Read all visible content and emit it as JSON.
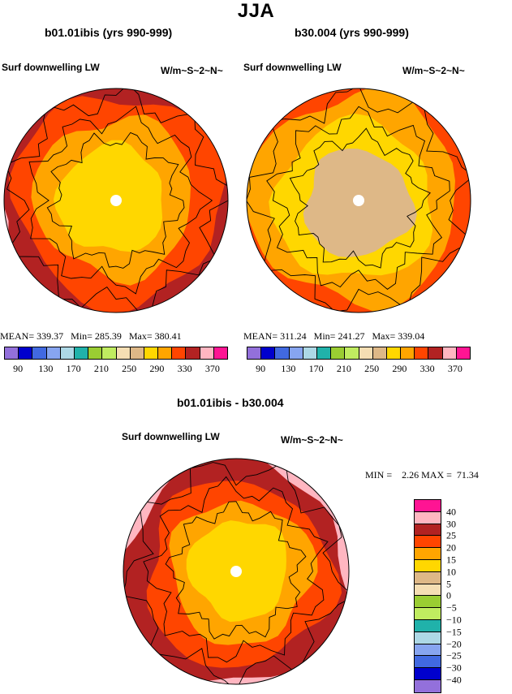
{
  "page": {
    "title": "JJA"
  },
  "panels": [
    {
      "id": "left",
      "subtitle": "b01.01ibis (yrs 990-999)",
      "variable": "Surf downwelling LW",
      "units": "W/m~S~2~N~",
      "stats": {
        "mean_label": "MEAN=",
        "mean": "339.37",
        "min_label": "Min=",
        "min": "285.39",
        "max_label": "Max=",
        "max": "380.41"
      }
    },
    {
      "id": "right",
      "subtitle": "b30.004 (yrs 990-999)",
      "variable": "Surf downwelling LW",
      "units": "W/m~S~2~N~",
      "stats": {
        "mean_label": "MEAN=",
        "mean": "311.24",
        "min_label": "Min=",
        "min": "241.27",
        "max_label": "Max=",
        "max": "339.04"
      }
    },
    {
      "id": "diff",
      "subtitle": "b01.01ibis - b30.004",
      "variable": "Surf downwelling LW",
      "units": "W/m~S~2~N~",
      "stats": {
        "min_label": "MIN =",
        "min": "2.26",
        "max_label": "MAX =",
        "max": "71.34"
      }
    }
  ],
  "colorbars": {
    "absolute": {
      "colors": [
        "#9370db",
        "#0000cd",
        "#4169e1",
        "#87a5f0",
        "#add8e6",
        "#20b2aa",
        "#9acd32",
        "#c0ec60",
        "#f5deb3",
        "#deb887",
        "#ffd700",
        "#ffa500",
        "#ff4500",
        "#b22222",
        "#ffb6c1",
        "#ff1493"
      ],
      "tick_labels": [
        "90",
        "130",
        "170",
        "210",
        "250",
        "290",
        "330",
        "370"
      ]
    },
    "difference": {
      "colors": [
        "#ff1493",
        "#ffb6c1",
        "#b22222",
        "#ff4500",
        "#ffa500",
        "#ffd700",
        "#deb887",
        "#f5deb3",
        "#9acd32",
        "#c0ec60",
        "#20b2aa",
        "#add8e6",
        "#87a5f0",
        "#4169e1",
        "#0000cd",
        "#9370db"
      ],
      "tick_labels": [
        "40",
        "30",
        "25",
        "20",
        "15",
        "10",
        "5",
        "0",
        "−5",
        "−10",
        "−15",
        "−20",
        "−25",
        "−30",
        "−40"
      ]
    }
  },
  "chart_data": [
    {
      "type": "heatmap",
      "title": "b01.01ibis (yrs 990-999)",
      "subtitle": "Surf downwelling LW",
      "units": "W/m~S~2~N~",
      "projection": "north polar stereographic",
      "stats": {
        "mean": 339.37,
        "min": 285.39,
        "max": 380.41
      },
      "levels": [
        90,
        130,
        170,
        210,
        250,
        290,
        330,
        370
      ],
      "fill_zones_outer_to_center": [
        {
          "color": "#ffb6c1",
          "range": [
            350,
            370
          ]
        },
        {
          "color": "#b22222",
          "range": [
            330,
            350
          ]
        },
        {
          "color": "#ff4500",
          "range": [
            310,
            330
          ]
        },
        {
          "color": "#ffa500",
          "range": [
            300,
            310
          ]
        },
        {
          "color": "#ffd700",
          "range": [
            290,
            300
          ]
        }
      ]
    },
    {
      "type": "heatmap",
      "title": "b30.004 (yrs 990-999)",
      "subtitle": "Surf downwelling LW",
      "units": "W/m~S~2~N~",
      "projection": "north polar stereographic",
      "stats": {
        "mean": 311.24,
        "min": 241.27,
        "max": 339.04
      },
      "levels": [
        90,
        130,
        170,
        210,
        250,
        290,
        330,
        370
      ],
      "fill_zones_outer_to_center": [
        {
          "color": "#b22222",
          "range": [
            330,
            350
          ]
        },
        {
          "color": "#ff4500",
          "range": [
            310,
            330
          ]
        },
        {
          "color": "#ffa500",
          "range": [
            300,
            310
          ]
        },
        {
          "color": "#ffd700",
          "range": [
            290,
            300
          ]
        },
        {
          "color": "#deb887",
          "range": [
            250,
            270
          ]
        }
      ]
    },
    {
      "type": "heatmap",
      "title": "b01.01ibis - b30.004",
      "subtitle": "Surf downwelling LW",
      "units": "W/m~S~2~N~",
      "projection": "north polar stereographic",
      "stats": {
        "min": 2.26,
        "max": 71.34
      },
      "levels": [
        -40,
        -30,
        -25,
        -20,
        -15,
        -10,
        -5,
        0,
        5,
        10,
        15,
        20,
        25,
        30,
        40
      ],
      "fill_zones_outer_to_center": [
        {
          "color": "#ff1493",
          "range": [
            40,
            80
          ]
        },
        {
          "color": "#ffb6c1",
          "range": [
            30,
            40
          ]
        },
        {
          "color": "#b22222",
          "range": [
            25,
            30
          ]
        },
        {
          "color": "#ff4500",
          "range": [
            20,
            25
          ]
        },
        {
          "color": "#ffa500",
          "range": [
            15,
            20
          ]
        },
        {
          "color": "#ffd700",
          "range": [
            10,
            15
          ]
        }
      ]
    }
  ]
}
